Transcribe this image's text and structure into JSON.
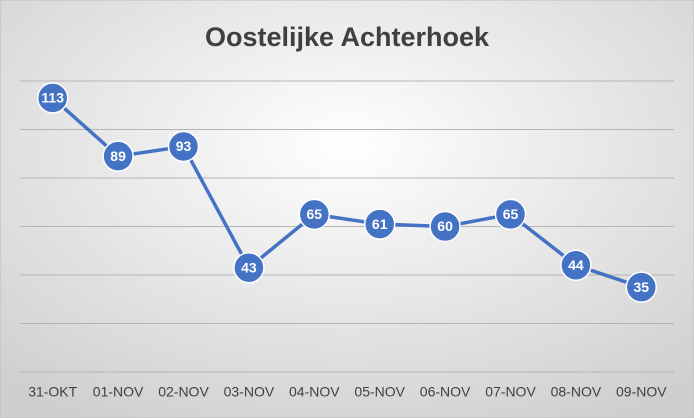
{
  "chart_data": {
    "type": "line",
    "title": "Oostelijke Achterhoek",
    "categories": [
      "31-OKT",
      "01-NOV",
      "02-NOV",
      "03-NOV",
      "04-NOV",
      "05-NOV",
      "06-NOV",
      "07-NOV",
      "08-NOV",
      "09-NOV"
    ],
    "series": [
      {
        "color": "#4472c4",
        "values": [
          113,
          89,
          93,
          43,
          65,
          61,
          60,
          65,
          44,
          35
        ]
      }
    ],
    "ylim": [
      0,
      120
    ],
    "yticks": [
      0,
      20,
      40,
      60,
      80,
      100,
      120
    ],
    "grid": true
  }
}
